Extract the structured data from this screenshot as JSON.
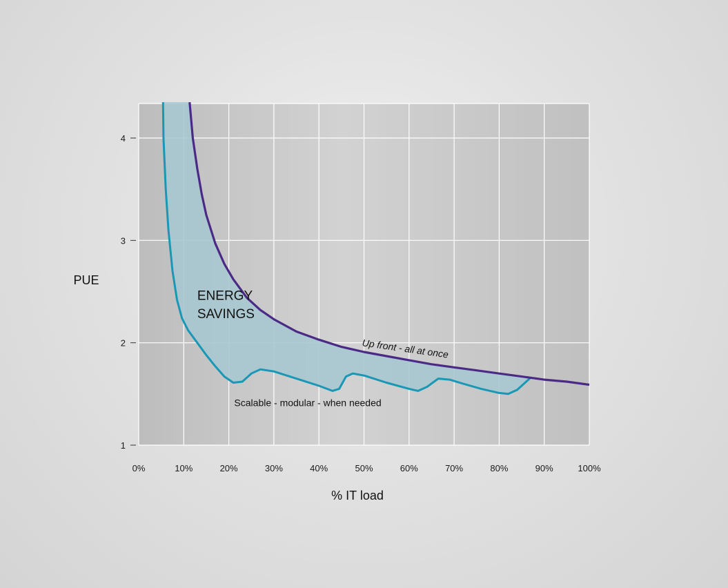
{
  "chart_data": {
    "type": "line",
    "xlabel": "% IT load",
    "ylabel": "PUE",
    "xlim": [
      0,
      100
    ],
    "ylim": [
      1,
      4.35
    ],
    "x_ticks": [
      "0%",
      "10%",
      "20%",
      "30%",
      "40%",
      "50%",
      "60%",
      "70%",
      "80%",
      "90%",
      "100%"
    ],
    "y_ticks": [
      "1",
      "2",
      "3",
      "4"
    ],
    "grid": true,
    "series": [
      {
        "name": "Up front - all at once",
        "color": "#4b2a86",
        "points": [
          [
            11.3,
            4.35
          ],
          [
            12,
            4.0
          ],
          [
            13,
            3.7
          ],
          [
            14,
            3.45
          ],
          [
            15,
            3.25
          ],
          [
            17,
            2.97
          ],
          [
            19,
            2.77
          ],
          [
            21,
            2.62
          ],
          [
            24,
            2.44
          ],
          [
            27,
            2.32
          ],
          [
            30,
            2.23
          ],
          [
            35,
            2.11
          ],
          [
            40,
            2.03
          ],
          [
            45,
            1.96
          ],
          [
            50,
            1.91
          ],
          [
            55,
            1.87
          ],
          [
            60,
            1.83
          ],
          [
            65,
            1.79
          ],
          [
            70,
            1.76
          ],
          [
            75,
            1.73
          ],
          [
            80,
            1.7
          ],
          [
            85,
            1.67
          ],
          [
            90,
            1.64
          ],
          [
            95,
            1.62
          ],
          [
            100,
            1.59
          ]
        ]
      },
      {
        "name": "Scalable - modular - when needed",
        "color": "#1a97b5",
        "points": [
          [
            5.4,
            4.35
          ],
          [
            5.5,
            4.0
          ],
          [
            6,
            3.5
          ],
          [
            6.6,
            3.1
          ],
          [
            7.5,
            2.7
          ],
          [
            8.5,
            2.42
          ],
          [
            9.6,
            2.24
          ],
          [
            11,
            2.12
          ],
          [
            13,
            2.0
          ],
          [
            15,
            1.88
          ],
          [
            17,
            1.77
          ],
          [
            19,
            1.67
          ],
          [
            21,
            1.61
          ],
          [
            23,
            1.62
          ],
          [
            25,
            1.7
          ],
          [
            27,
            1.74
          ],
          [
            30,
            1.72
          ],
          [
            35,
            1.65
          ],
          [
            40,
            1.58
          ],
          [
            43,
            1.53
          ],
          [
            44.5,
            1.55
          ],
          [
            46,
            1.67
          ],
          [
            47.5,
            1.7
          ],
          [
            50,
            1.68
          ],
          [
            55,
            1.61
          ],
          [
            60,
            1.55
          ],
          [
            62,
            1.53
          ],
          [
            64,
            1.57
          ],
          [
            66.5,
            1.65
          ],
          [
            69,
            1.64
          ],
          [
            72,
            1.6
          ],
          [
            76,
            1.55
          ],
          [
            80,
            1.51
          ],
          [
            82,
            1.5
          ],
          [
            84,
            1.54
          ],
          [
            86,
            1.62
          ],
          [
            87,
            1.66
          ]
        ]
      }
    ],
    "annotations": [
      {
        "text": "ENERGY",
        "x": 13,
        "y": 2.42
      },
      {
        "text": "SAVINGS",
        "x": 13,
        "y": 2.24
      }
    ],
    "fill_color": "#a7c6cf"
  }
}
